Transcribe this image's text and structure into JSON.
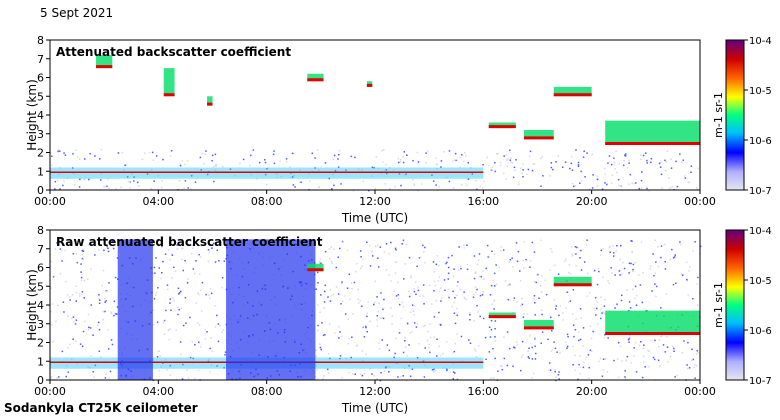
{
  "header": {
    "date": "5 Sept 2021"
  },
  "footer": {
    "instrument": "Sodankyla CT25K ceilometer"
  },
  "colorbar": {
    "ticks": [
      "10-7",
      "10-6",
      "10-5",
      "10-4"
    ],
    "unit_label": "m-1 sr-1",
    "colors": [
      "#e6e6f0",
      "#8080ff",
      "#0000ff",
      "#00ffff",
      "#00ff00",
      "#ffff00",
      "#ff0000",
      "#800000",
      "#600080"
    ]
  },
  "chart_data": [
    {
      "type": "heatmap",
      "title": "Attenuated backscatter coefficient",
      "xlabel": "Time (UTC)",
      "ylabel": "Height (km)",
      "xticks": [
        "00:00",
        "04:00",
        "08:00",
        "12:00",
        "16:00",
        "20:00",
        "00:00"
      ],
      "xlim": [
        0,
        24
      ],
      "yticks": [
        "0",
        "1",
        "2",
        "3",
        "4",
        "5",
        "6",
        "7",
        "8"
      ],
      "ylim": [
        0,
        8
      ],
      "features": [
        {
          "kind": "boundary_layer",
          "x": [
            0,
            16
          ],
          "y": 0.95
        },
        {
          "kind": "cloud",
          "x": [
            1.7,
            2.3
          ],
          "y": [
            6.5,
            7.2
          ]
        },
        {
          "kind": "cloud",
          "x": [
            4.2,
            4.6
          ],
          "y": [
            5.0,
            6.5
          ]
        },
        {
          "kind": "cloud",
          "x": [
            5.8,
            6.0
          ],
          "y": [
            4.5,
            5.0
          ]
        },
        {
          "kind": "cloud",
          "x": [
            9.5,
            10.1
          ],
          "y": [
            5.8,
            6.2
          ]
        },
        {
          "kind": "cloud",
          "x": [
            11.7,
            11.9
          ],
          "y": [
            5.5,
            5.8
          ]
        },
        {
          "kind": "cloud",
          "x": [
            16.2,
            17.2
          ],
          "y": [
            3.3,
            3.6
          ]
        },
        {
          "kind": "cloud",
          "x": [
            17.5,
            18.6
          ],
          "y": [
            2.7,
            3.2
          ]
        },
        {
          "kind": "cloud",
          "x": [
            18.6,
            20.0
          ],
          "y": [
            5.0,
            5.5
          ]
        },
        {
          "kind": "cloud",
          "x": [
            20.5,
            24
          ],
          "y": [
            2.4,
            3.7
          ]
        }
      ]
    },
    {
      "type": "heatmap",
      "title": "Raw attenuated backscatter coefficient",
      "xlabel": "Time (UTC)",
      "ylabel": "Height (km)",
      "xticks": [
        "00:00",
        "04:00",
        "08:00",
        "12:00",
        "16:00",
        "20:00",
        "00:00"
      ],
      "xlim": [
        0,
        24
      ],
      "yticks": [
        "0",
        "1",
        "2",
        "3",
        "4",
        "5",
        "6",
        "7",
        "8"
      ],
      "ylim": [
        0,
        8
      ],
      "features": [
        {
          "kind": "boundary_layer",
          "x": [
            0,
            16
          ],
          "y": 0.95
        },
        {
          "kind": "noise_block",
          "x": [
            2.5,
            3.8
          ],
          "y": [
            0,
            7.5
          ]
        },
        {
          "kind": "noise_block",
          "x": [
            6.5,
            9.8
          ],
          "y": [
            0,
            7.5
          ]
        },
        {
          "kind": "cloud",
          "x": [
            9.5,
            10.1
          ],
          "y": [
            5.8,
            6.2
          ]
        },
        {
          "kind": "cloud",
          "x": [
            16.2,
            17.2
          ],
          "y": [
            3.3,
            3.6
          ]
        },
        {
          "kind": "cloud",
          "x": [
            17.5,
            18.6
          ],
          "y": [
            2.7,
            3.2
          ]
        },
        {
          "kind": "cloud",
          "x": [
            18.6,
            20.0
          ],
          "y": [
            5.0,
            5.5
          ]
        },
        {
          "kind": "cloud",
          "x": [
            20.5,
            24
          ],
          "y": [
            2.4,
            3.7
          ]
        }
      ]
    }
  ]
}
